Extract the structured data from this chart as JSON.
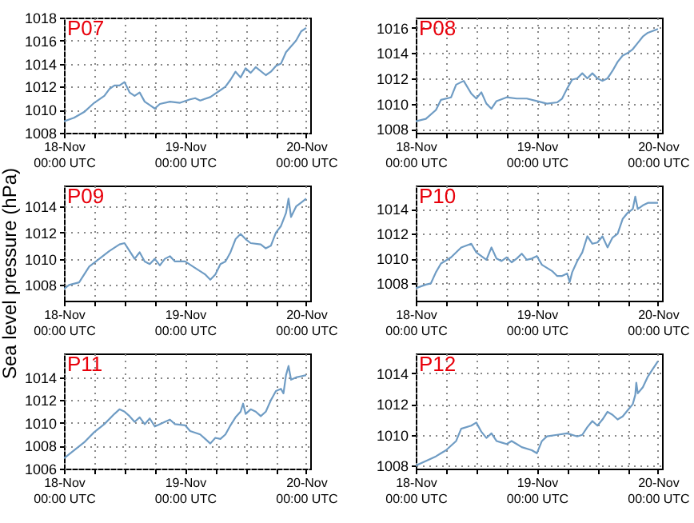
{
  "chart_data": [
    {
      "type": "line",
      "title": "P07",
      "color": "#6f9cc4",
      "xlim": [
        "--11-18T00:00",
        "--11-20T00:48"
      ],
      "ylim": [
        1008,
        1018
      ],
      "yticks": [
        1008,
        1010,
        1012,
        1014,
        1016,
        1018
      ],
      "grid": true,
      "xticks": [
        {
          "value": "--11-18T00:00",
          "label": "18-Nov\n00:00 UTC"
        },
        {
          "value": "--11-18T06:00",
          "label": null
        },
        {
          "value": "--11-18T12:00",
          "label": null
        },
        {
          "value": "--11-18T18:00",
          "label": null
        },
        {
          "value": "--11-19T00:00",
          "label": "19-Nov\n00:00 UTC"
        },
        {
          "value": "--11-19T06:00",
          "label": null
        },
        {
          "value": "--11-19T12:00",
          "label": null
        },
        {
          "value": "--11-19T18:00",
          "label": null
        },
        {
          "value": "--11-20T00:00",
          "label": "20-Nov\n00:00 UTC"
        }
      ],
      "x": [
        "--11-18T00:00",
        "--11-18T02:00",
        "--11-18T04:00",
        "--11-18T06:00",
        "--11-18T08:00",
        "--11-18T09:00",
        "--11-18T10:00",
        "--11-18T11:00",
        "--11-18T12:00",
        "--11-18T13:00",
        "--11-18T14:00",
        "--11-18T15:00",
        "--11-18T16:00",
        "--11-18T17:00",
        "--11-18T18:00",
        "--11-18T19:00",
        "--11-18T21:00",
        "--11-18T23:00",
        "--11-19T01:00",
        "--11-19T02:00",
        "--11-19T03:00",
        "--11-19T05:00",
        "--11-19T07:00",
        "--11-19T08:00",
        "--11-19T09:00",
        "--11-19T10:00",
        "--11-19T11:00",
        "--11-19T12:00",
        "--11-19T13:00",
        "--11-19T14:00",
        "--11-19T16:00",
        "--11-19T17:00",
        "--11-19T18:00",
        "--11-19T19:00",
        "--11-19T20:00",
        "--11-19T21:00",
        "--11-19T22:00",
        "--11-19T23:00",
        "--11-20T00:00"
      ],
      "values": [
        1009,
        1009.3,
        1009.8,
        1010.6,
        1011.2,
        1011.8,
        1012.1,
        1012.1,
        1012.4,
        1011.5,
        1011.2,
        1011.5,
        1010.7,
        1010.4,
        1010.1,
        1010.5,
        1010.7,
        1010.6,
        1010.9,
        1011,
        1010.8,
        1011.1,
        1011.7,
        1012,
        1012.6,
        1013.3,
        1012.8,
        1013.6,
        1013.2,
        1013.7,
        1013,
        1013.3,
        1013.8,
        1014,
        1015,
        1015.5,
        1016,
        1016.8,
        1017.1
      ]
    },
    {
      "type": "line",
      "title": "P08",
      "color": "#6f9cc4",
      "xlim": [
        "--11-18T00:00",
        "--11-20T00:48"
      ],
      "ylim": [
        1007.7,
        1016.8
      ],
      "yticks": [
        1008,
        1010,
        1012,
        1014,
        1016
      ],
      "grid": true,
      "xticks": [
        {
          "value": "--11-18T00:00",
          "label": "18-Nov\n00:00 UTC"
        },
        {
          "value": "--11-18T06:00",
          "label": null
        },
        {
          "value": "--11-18T12:00",
          "label": null
        },
        {
          "value": "--11-18T18:00",
          "label": null
        },
        {
          "value": "--11-19T00:00",
          "label": "19-Nov\n00:00 UTC"
        },
        {
          "value": "--11-19T06:00",
          "label": null
        },
        {
          "value": "--11-19T12:00",
          "label": null
        },
        {
          "value": "--11-19T18:00",
          "label": null
        },
        {
          "value": "--11-20T00:00",
          "label": "20-Nov\n00:00 UTC"
        }
      ],
      "x": [
        "--11-18T00:00",
        "--11-18T02:00",
        "--11-18T04:00",
        "--11-18T05:00",
        "--11-18T07:00",
        "--11-18T08:00",
        "--11-18T09:30",
        "--11-18T11:00",
        "--11-18T12:00",
        "--11-18T13:00",
        "--11-18T14:00",
        "--11-18T15:00",
        "--11-18T16:00",
        "--11-18T18:00",
        "--11-18T20:00",
        "--11-18T22:00",
        "--11-19T00:00",
        "--11-19T02:00",
        "--11-19T04:00",
        "--11-19T05:00",
        "--11-19T06:00",
        "--11-19T07:00",
        "--11-19T08:00",
        "--11-19T09:00",
        "--11-19T10:00",
        "--11-19T11:00",
        "--11-19T12:00",
        "--11-19T13:00",
        "--11-19T14:00",
        "--11-19T15:00",
        "--11-19T16:00",
        "--11-19T17:00",
        "--11-19T18:00",
        "--11-19T19:00",
        "--11-19T20:00",
        "--11-19T21:00",
        "--11-19T22:00",
        "--11-20T00:00"
      ],
      "values": [
        1008.6,
        1008.8,
        1009.5,
        1010.3,
        1010.5,
        1011.5,
        1011.8,
        1010.8,
        1010.4,
        1010.9,
        1010,
        1009.6,
        1010.2,
        1010.5,
        1010.4,
        1010.4,
        1010.2,
        1010,
        1010.1,
        1010.4,
        1011.2,
        1011.9,
        1012,
        1012.4,
        1012,
        1012.4,
        1012,
        1011.8,
        1012,
        1012.6,
        1013.3,
        1013.8,
        1014,
        1014.3,
        1014.8,
        1015.3,
        1015.6,
        1015.9
      ]
    },
    {
      "type": "line",
      "title": "P09",
      "ylabel": "Sea level pressure (hPa)",
      "color": "#6f9cc4",
      "xlim": [
        "--11-18T00:00",
        "--11-20T00:48"
      ],
      "ylim": [
        1006.8,
        1015.6
      ],
      "yticks": [
        1008,
        1010,
        1012,
        1014
      ],
      "grid": true,
      "xticks": [
        {
          "value": "--11-18T00:00",
          "label": "18-Nov\n00:00 UTC"
        },
        {
          "value": "--11-18T06:00",
          "label": null
        },
        {
          "value": "--11-18T12:00",
          "label": null
        },
        {
          "value": "--11-18T18:00",
          "label": null
        },
        {
          "value": "--11-19T00:00",
          "label": "19-Nov\n00:00 UTC"
        },
        {
          "value": "--11-19T06:00",
          "label": null
        },
        {
          "value": "--11-19T12:00",
          "label": null
        },
        {
          "value": "--11-19T18:00",
          "label": null
        },
        {
          "value": "--11-20T00:00",
          "label": "20-Nov\n00:00 UTC"
        }
      ],
      "x": [
        "--11-18T00:00",
        "--11-18T01:00",
        "--11-18T03:00",
        "--11-18T05:00",
        "--11-18T07:00",
        "--11-18T09:00",
        "--11-18T11:00",
        "--11-18T12:00",
        "--11-18T13:00",
        "--11-18T14:00",
        "--11-18T15:00",
        "--11-18T16:00",
        "--11-18T17:00",
        "--11-18T18:00",
        "--11-18T19:00",
        "--11-18T20:00",
        "--11-18T21:00",
        "--11-18T22:00",
        "--11-19T00:00",
        "--11-19T02:00",
        "--11-19T04:00",
        "--11-19T05:00",
        "--11-19T06:00",
        "--11-19T07:00",
        "--11-19T08:00",
        "--11-19T09:00",
        "--11-19T10:00",
        "--11-19T11:00",
        "--11-19T12:00",
        "--11-19T13:00",
        "--11-19T15:00",
        "--11-19T16:00",
        "--11-19T17:00",
        "--11-19T18:00",
        "--11-19T19:00",
        "--11-19T20:00",
        "--11-19T20:30",
        "--11-19T21:00",
        "--11-19T22:00",
        "--11-19T23:00",
        "--11-20T00:00"
      ],
      "values": [
        1007.7,
        1008,
        1008.2,
        1009.4,
        1010,
        1010.6,
        1011.1,
        1011.2,
        1010.6,
        1010,
        1010.5,
        1009.8,
        1009.6,
        1010,
        1009.5,
        1010,
        1010.2,
        1009.8,
        1009.8,
        1009.3,
        1008.8,
        1008.4,
        1008.8,
        1009.6,
        1009.8,
        1010.5,
        1011.5,
        1011.9,
        1011.5,
        1011.2,
        1011.1,
        1010.8,
        1011,
        1012,
        1012.5,
        1013.5,
        1014.6,
        1013.2,
        1014,
        1014.3,
        1014.6
      ]
    },
    {
      "type": "line",
      "title": "P10",
      "color": "#6f9cc4",
      "xlim": [
        "--11-18T00:00",
        "--11-20T00:48"
      ],
      "ylim": [
        1006.6,
        1015.9
      ],
      "yticks": [
        1008,
        1010,
        1012,
        1014
      ],
      "grid": true,
      "xticks": [
        {
          "value": "--11-18T00:00",
          "label": "18-Nov\n00:00 UTC"
        },
        {
          "value": "--11-18T06:00",
          "label": null
        },
        {
          "value": "--11-18T12:00",
          "label": null
        },
        {
          "value": "--11-18T18:00",
          "label": null
        },
        {
          "value": "--11-19T00:00",
          "label": "19-Nov\n00:00 UTC"
        },
        {
          "value": "--11-19T06:00",
          "label": null
        },
        {
          "value": "--11-19T12:00",
          "label": null
        },
        {
          "value": "--11-19T18:00",
          "label": null
        },
        {
          "value": "--11-20T00:00",
          "label": "20-Nov\n00:00 UTC"
        }
      ],
      "x": [
        "--11-18T00:00",
        "--11-18T02:00",
        "--11-18T03:00",
        "--11-18T04:00",
        "--11-18T05:00",
        "--11-18T07:00",
        "--11-18T09:00",
        "--11-18T11:00",
        "--11-18T12:00",
        "--11-18T14:00",
        "--11-18T15:00",
        "--11-18T16:00",
        "--11-18T17:00",
        "--11-18T18:00",
        "--11-18T19:00",
        "--11-18T20:00",
        "--11-18T21:00",
        "--11-18T22:00",
        "--11-18T23:00",
        "--11-19T00:00",
        "--11-19T01:00",
        "--11-19T03:00",
        "--11-19T04:00",
        "--11-19T05:00",
        "--11-19T06:00",
        "--11-19T06:30",
        "--11-19T07:00",
        "--11-19T08:00",
        "--11-19T09:00",
        "--11-19T10:00",
        "--11-19T11:00",
        "--11-19T12:00",
        "--11-19T13:00",
        "--11-19T14:00",
        "--11-19T15:00",
        "--11-19T16:00",
        "--11-19T17:00",
        "--11-19T18:00",
        "--11-19T19:00",
        "--11-19T19:30",
        "--11-19T20:00",
        "--11-19T21:00",
        "--11-19T22:00",
        "--11-20T00:00"
      ],
      "values": [
        1007.6,
        1007.9,
        1008,
        1008.9,
        1009.6,
        1010.1,
        1010.9,
        1011.2,
        1010.5,
        1009.9,
        1010.9,
        1010,
        1009.8,
        1010.1,
        1009.7,
        1010,
        1010.4,
        1009.9,
        1010,
        1010.2,
        1009.5,
        1009,
        1008.6,
        1008.6,
        1008.8,
        1008.1,
        1008.9,
        1009.8,
        1010.5,
        1011.8,
        1011.2,
        1011.3,
        1011.8,
        1010.9,
        1011.7,
        1012,
        1013.2,
        1013.7,
        1014,
        1015,
        1014,
        1014.3,
        1014.5,
        1014.5
      ]
    },
    {
      "type": "line",
      "title": "P11",
      "color": "#6f9cc4",
      "xlim": [
        "--11-18T00:00",
        "--11-20T00:48"
      ],
      "ylim": [
        1006,
        1016.1
      ],
      "yticks": [
        1006,
        1008,
        1010,
        1012,
        1014
      ],
      "grid": true,
      "xticks": [
        {
          "value": "--11-18T00:00",
          "label": "18-Nov\n00:00 UTC"
        },
        {
          "value": "--11-18T06:00",
          "label": null
        },
        {
          "value": "--11-18T12:00",
          "label": null
        },
        {
          "value": "--11-18T18:00",
          "label": null
        },
        {
          "value": "--11-19T00:00",
          "label": "19-Nov\n00:00 UTC"
        },
        {
          "value": "--11-19T06:00",
          "label": null
        },
        {
          "value": "--11-19T12:00",
          "label": null
        },
        {
          "value": "--11-19T18:00",
          "label": null
        },
        {
          "value": "--11-20T00:00",
          "label": "20-Nov\n00:00 UTC"
        }
      ],
      "x": [
        "--11-18T00:00",
        "--11-18T02:00",
        "--11-18T04:00",
        "--11-18T06:00",
        "--11-18T08:00",
        "--11-18T10:00",
        "--11-18T11:00",
        "--11-18T12:00",
        "--11-18T13:00",
        "--11-18T14:00",
        "--11-18T15:00",
        "--11-18T16:00",
        "--11-18T17:00",
        "--11-18T18:00",
        "--11-18T19:00",
        "--11-18T20:00",
        "--11-18T21:00",
        "--11-18T22:00",
        "--11-19T00:00",
        "--11-19T01:00",
        "--11-19T03:00",
        "--11-19T04:00",
        "--11-19T05:00",
        "--11-19T06:00",
        "--11-19T07:00",
        "--11-19T08:00",
        "--11-19T09:00",
        "--11-19T10:00",
        "--11-19T11:00",
        "--11-19T11:30",
        "--11-19T12:00",
        "--11-19T13:00",
        "--11-19T14:00",
        "--11-19T15:00",
        "--11-19T16:00",
        "--11-19T17:00",
        "--11-19T18:00",
        "--11-19T19:00",
        "--11-19T19:30",
        "--11-19T20:00",
        "--11-19T20:30",
        "--11-19T21:00",
        "--11-19T22:00",
        "--11-19T23:00",
        "--11-20T00:00"
      ],
      "values": [
        1006.9,
        1007.6,
        1008.3,
        1009.2,
        1009.9,
        1010.8,
        1011.2,
        1011,
        1010.6,
        1010.1,
        1010.5,
        1009.9,
        1010.4,
        1009.7,
        1009.9,
        1010.1,
        1010.3,
        1009.9,
        1009.8,
        1009.3,
        1009,
        1008.6,
        1008.2,
        1008.7,
        1008.6,
        1009,
        1009.8,
        1010.5,
        1011,
        1011.7,
        1010.8,
        1011.2,
        1011,
        1010.6,
        1011,
        1012,
        1012.8,
        1013,
        1012.6,
        1014.2,
        1015,
        1013.8,
        1014,
        1014.1,
        1014.2
      ]
    },
    {
      "type": "line",
      "title": "P12",
      "color": "#6f9cc4",
      "xlim": [
        "--11-18T00:00",
        "--11-20T00:48"
      ],
      "ylim": [
        1007.8,
        1015.3
      ],
      "yticks": [
        1008,
        1010,
        1012,
        1014
      ],
      "grid": true,
      "xticks": [
        {
          "value": "--11-18T00:00",
          "label": "18-Nov\n00:00 UTC"
        },
        {
          "value": "--11-18T06:00",
          "label": null
        },
        {
          "value": "--11-18T12:00",
          "label": null
        },
        {
          "value": "--11-18T18:00",
          "label": null
        },
        {
          "value": "--11-19T00:00",
          "label": "19-Nov\n00:00 UTC"
        },
        {
          "value": "--11-19T06:00",
          "label": null
        },
        {
          "value": "--11-19T12:00",
          "label": null
        },
        {
          "value": "--11-19T18:00",
          "label": null
        },
        {
          "value": "--11-20T00:00",
          "label": "20-Nov\n00:00 UTC"
        }
      ],
      "x": [
        "--11-18T00:00",
        "--11-18T02:00",
        "--11-18T04:00",
        "--11-18T05:00",
        "--11-18T06:00",
        "--11-18T08:00",
        "--11-18T09:00",
        "--11-18T11:00",
        "--11-18T12:00",
        "--11-18T13:00",
        "--11-18T14:00",
        "--11-18T15:00",
        "--11-18T16:00",
        "--11-18T17:00",
        "--11-18T18:00",
        "--11-18T19:00",
        "--11-18T20:00",
        "--11-18T21:00",
        "--11-18T23:00",
        "--11-19T00:00",
        "--11-19T01:00",
        "--11-19T02:00",
        "--11-19T04:00",
        "--11-19T06:00",
        "--11-19T08:00",
        "--11-19T09:00",
        "--11-19T10:00",
        "--11-19T11:00",
        "--11-19T12:00",
        "--11-19T13:00",
        "--11-19T14:00",
        "--11-19T15:00",
        "--11-19T16:00",
        "--11-19T17:00",
        "--11-19T18:00",
        "--11-19T19:00",
        "--11-19T19:30",
        "--11-19T19:42",
        "--11-19T20:00",
        "--11-19T21:00",
        "--11-19T22:00",
        "--11-19T23:00",
        "--11-20T00:00"
      ],
      "values": [
        1008,
        1008.3,
        1008.6,
        1008.8,
        1009,
        1009.6,
        1010.4,
        1010.6,
        1010.8,
        1010.2,
        1009.8,
        1010.1,
        1009.6,
        1009.5,
        1009.4,
        1009.6,
        1009.4,
        1009.2,
        1009,
        1008.8,
        1009.6,
        1009.9,
        1010,
        1010.1,
        1009.9,
        1010,
        1010.5,
        1010.9,
        1010.6,
        1011,
        1011.5,
        1011.3,
        1011,
        1011.2,
        1011.6,
        1012,
        1012.6,
        1013.4,
        1012.7,
        1013.1,
        1013.8,
        1014.3,
        1014.8
      ]
    }
  ]
}
